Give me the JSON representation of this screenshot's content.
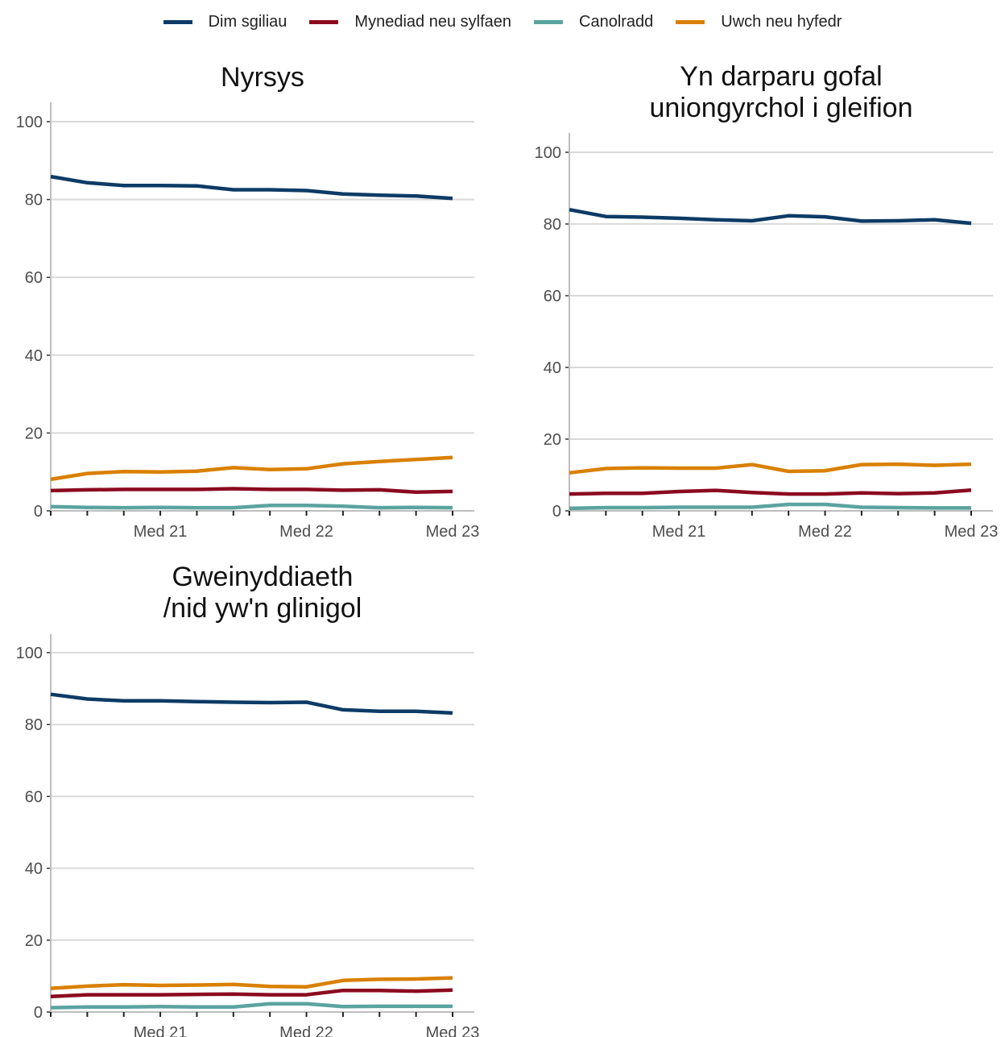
{
  "colors": {
    "dim": "#0d3b66",
    "myn": "#8b0a1f",
    "can": "#5ba3a0",
    "uwch": "#d98000",
    "grid": "#d9d9d9",
    "axis": "#bdbdbd"
  },
  "legend": [
    {
      "key": "dim",
      "label": "Dim sgiliau"
    },
    {
      "key": "myn",
      "label": "Mynediad neu sylfaen"
    },
    {
      "key": "can",
      "label": "Canolradd"
    },
    {
      "key": "uwch",
      "label": "Uwch neu hyfedr"
    }
  ],
  "chart_data": [
    {
      "type": "line",
      "title": [
        "Nyrsys"
      ],
      "ylim": [
        0,
        105
      ],
      "yticks": [
        0,
        20,
        40,
        60,
        80,
        100
      ],
      "x_index": [
        0,
        1,
        2,
        3,
        4,
        5,
        6,
        7,
        8,
        9,
        10,
        11
      ],
      "xtick_labels": [
        {
          "i": 3,
          "label": "Med 21"
        },
        {
          "i": 7,
          "label": "Med 22"
        },
        {
          "i": 11,
          "label": "Med 23"
        }
      ],
      "grid": "horizontal",
      "series": [
        {
          "key": "dim",
          "name": "Dim sgiliau",
          "values": [
            85.9,
            84.3,
            83.6,
            83.6,
            83.5,
            82.5,
            82.5,
            82.3,
            81.4,
            81.1,
            80.9,
            80.3
          ]
        },
        {
          "key": "myn",
          "name": "Mynediad neu sylfaen",
          "values": [
            5.2,
            5.4,
            5.5,
            5.5,
            5.5,
            5.7,
            5.5,
            5.5,
            5.3,
            5.4,
            4.8,
            5.0
          ]
        },
        {
          "key": "can",
          "name": "Canolradd",
          "values": [
            1.1,
            0.9,
            0.8,
            0.9,
            0.8,
            0.8,
            1.4,
            1.4,
            1.2,
            0.8,
            0.9,
            0.8
          ]
        },
        {
          "key": "uwch",
          "name": "Uwch neu hyfedr",
          "values": [
            8.1,
            9.6,
            10.1,
            10.0,
            10.2,
            11.1,
            10.6,
            10.8,
            12.1,
            12.7,
            13.2,
            13.7
          ]
        }
      ]
    },
    {
      "type": "line",
      "title": [
        "Yn darparu gofal",
        "uniongyrchol i gleifion"
      ],
      "ylim": [
        0,
        105
      ],
      "yticks": [
        0,
        20,
        40,
        60,
        80,
        100
      ],
      "x_index": [
        0,
        1,
        2,
        3,
        4,
        5,
        6,
        7,
        8,
        9,
        10,
        11
      ],
      "xtick_labels": [
        {
          "i": 3,
          "label": "Med 21"
        },
        {
          "i": 7,
          "label": "Med 22"
        },
        {
          "i": 11,
          "label": "Med 23"
        }
      ],
      "grid": "horizontal",
      "series": [
        {
          "key": "dim",
          "name": "Dim sgiliau",
          "values": [
            84.0,
            82.1,
            81.9,
            81.6,
            81.2,
            80.9,
            82.3,
            82.0,
            80.8,
            80.9,
            81.2,
            80.2
          ]
        },
        {
          "key": "myn",
          "name": "Mynediad neu sylfaen",
          "values": [
            4.7,
            4.9,
            4.9,
            5.4,
            5.7,
            5.1,
            4.7,
            4.7,
            5.0,
            4.8,
            5.0,
            5.8
          ]
        },
        {
          "key": "can",
          "name": "Canolradd",
          "values": [
            0.7,
            0.9,
            0.9,
            1.0,
            1.0,
            1.0,
            1.8,
            1.8,
            1.0,
            0.9,
            0.8,
            0.8
          ]
        },
        {
          "key": "uwch",
          "name": "Uwch neu hyfedr",
          "values": [
            10.6,
            11.8,
            12.0,
            11.9,
            11.9,
            12.9,
            11.0,
            11.2,
            12.9,
            13.0,
            12.7,
            13.0
          ]
        }
      ]
    },
    {
      "type": "line",
      "title": [
        "Gweinyddiaeth",
        "/nid yw'n glinigol"
      ],
      "ylim": [
        0,
        105
      ],
      "yticks": [
        0,
        20,
        40,
        60,
        80,
        100
      ],
      "x_index": [
        0,
        1,
        2,
        3,
        4,
        5,
        6,
        7,
        8,
        9,
        10,
        11
      ],
      "xtick_labels": [
        {
          "i": 3,
          "label": "Med 21"
        },
        {
          "i": 7,
          "label": "Med 22"
        },
        {
          "i": 11,
          "label": "Med 23"
        }
      ],
      "grid": "horizontal",
      "series": [
        {
          "key": "dim",
          "name": "Dim sgiliau",
          "values": [
            88.4,
            87.1,
            86.6,
            86.6,
            86.4,
            86.2,
            86.1,
            86.2,
            84.1,
            83.7,
            83.7,
            83.2
          ]
        },
        {
          "key": "myn",
          "name": "Mynediad neu sylfaen",
          "values": [
            4.3,
            4.8,
            4.8,
            4.8,
            4.9,
            5.0,
            4.8,
            4.8,
            6.0,
            6.0,
            5.8,
            6.1
          ]
        },
        {
          "key": "can",
          "name": "Canolradd",
          "values": [
            1.2,
            1.4,
            1.4,
            1.5,
            1.4,
            1.4,
            2.3,
            2.3,
            1.5,
            1.6,
            1.6,
            1.6
          ]
        },
        {
          "key": "uwch",
          "name": "Uwch neu hyfedr",
          "values": [
            6.6,
            7.2,
            7.6,
            7.4,
            7.5,
            7.7,
            7.1,
            7.0,
            8.8,
            9.1,
            9.2,
            9.5
          ]
        }
      ]
    }
  ]
}
